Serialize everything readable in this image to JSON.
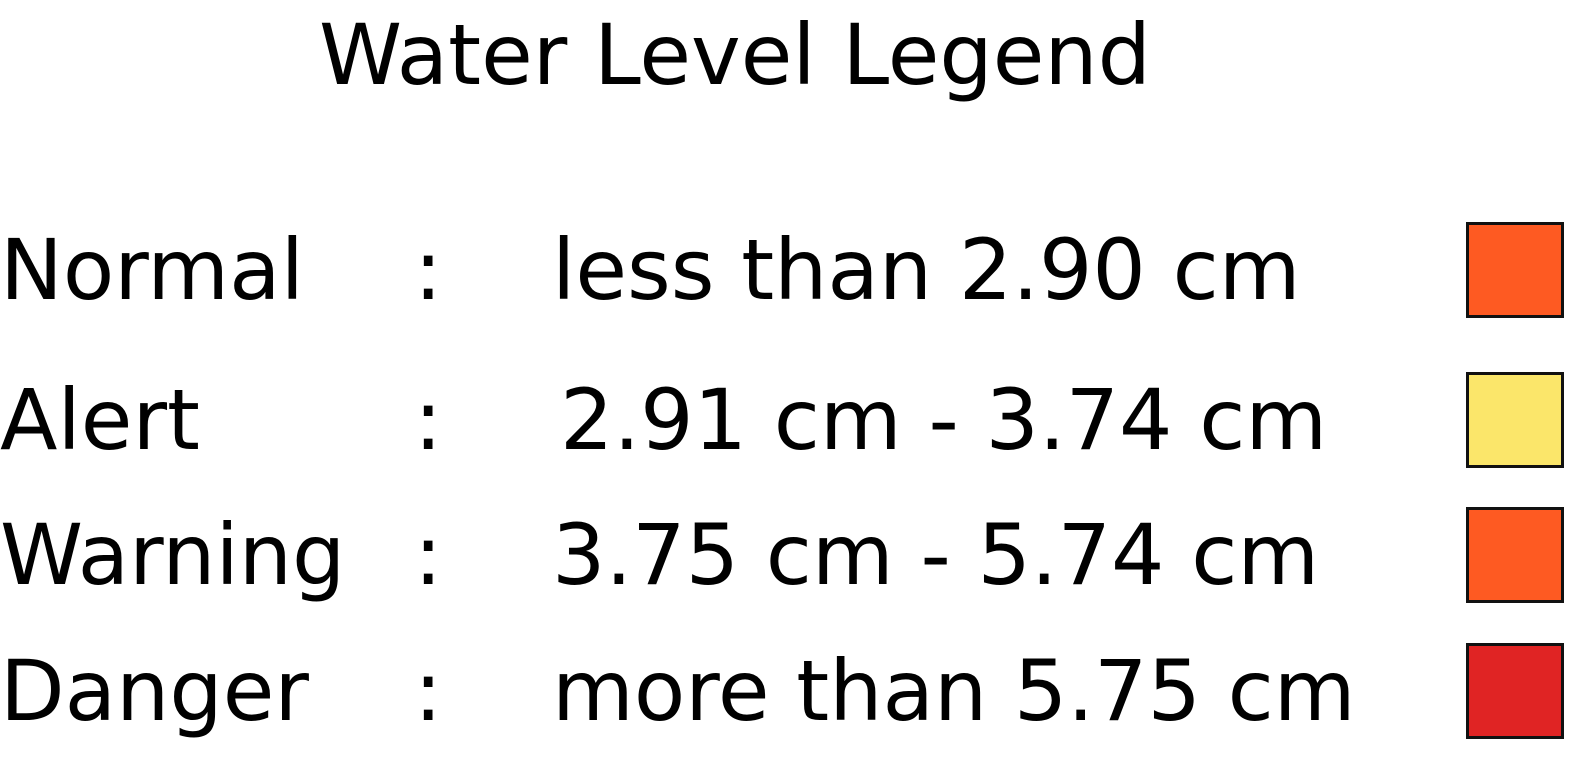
{
  "title": "Water Level Legend",
  "separator": ":",
  "levels": [
    {
      "label": "Normal",
      "range": "less than 2.90 cm",
      "color": "#fe5a22"
    },
    {
      "label": "Alert",
      "range": "2.91 cm - 3.74 cm",
      "color": "#fbe66a"
    },
    {
      "label": "Warning",
      "range": "3.75 cm - 5.74 cm",
      "color": "#fe5a22"
    },
    {
      "label": "Danger",
      "range": "more than 5.75 cm",
      "color": "#e02424"
    }
  ]
}
